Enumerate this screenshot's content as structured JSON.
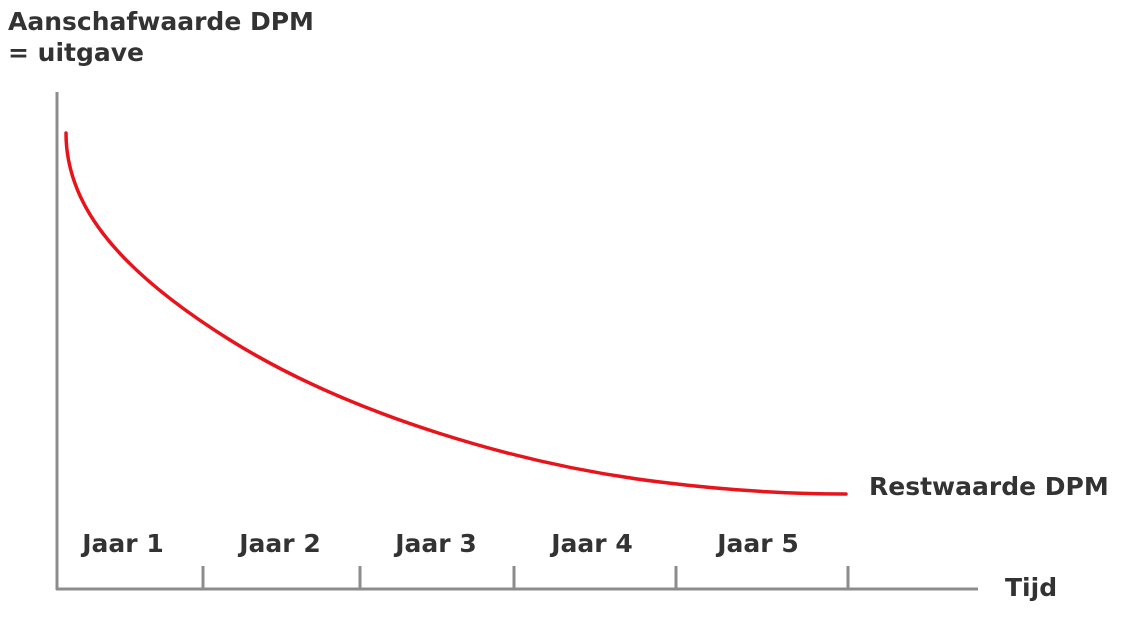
{
  "chart_data": {
    "type": "line",
    "ylabel_lines": [
      "Aanschafwaarde DPM",
      "= uitgave"
    ],
    "xlabel": "Tijd",
    "categories": [
      "Jaar 1",
      "Jaar 2",
      "Jaar 3",
      "Jaar 4",
      "Jaar 5"
    ],
    "curve_label": "Restwaarde DPM",
    "line_color": "#e8141c",
    "axis_color": "#8c8c8c",
    "text_color": "#333333"
  }
}
